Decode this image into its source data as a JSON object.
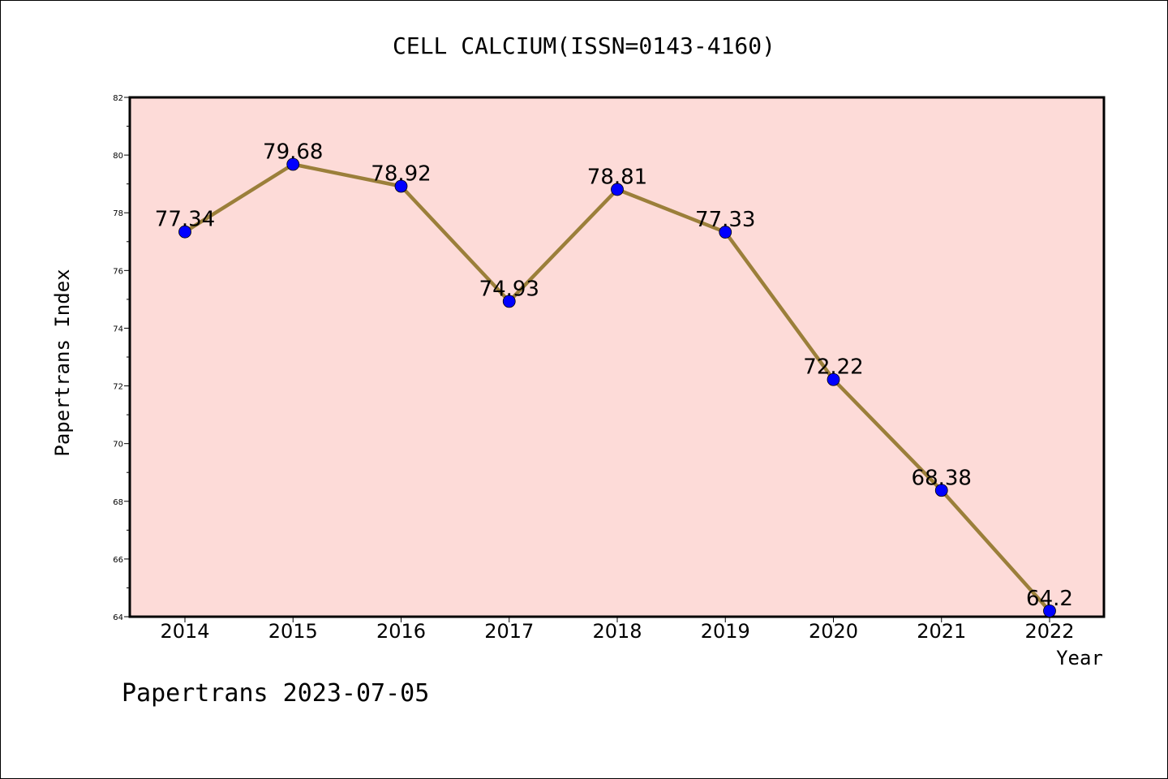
{
  "chart_data": {
    "type": "line",
    "title": "CELL CALCIUM(ISSN=0143-4160)",
    "xlabel": "Year",
    "ylabel": "Papertrans Index",
    "categories": [
      "2014",
      "2015",
      "2016",
      "2017",
      "2018",
      "2019",
      "2020",
      "2021",
      "2022"
    ],
    "series": [
      {
        "values": [
          77.34,
          79.68,
          78.92,
          74.93,
          78.81,
          77.33,
          72.22,
          68.38,
          64.2
        ]
      }
    ],
    "data_labels": [
      "77.34",
      "79.68",
      "78.92",
      "74.93",
      "78.81",
      "77.33",
      "72.22",
      "68.38",
      "64.2"
    ],
    "ylim": [
      64,
      82
    ],
    "yticks": [
      64,
      66,
      68,
      70,
      72,
      74,
      76,
      78,
      80,
      82
    ],
    "grid": false,
    "legend": "none",
    "colors": {
      "plot_background": "#fddbd8",
      "line": "#9b7f3a",
      "marker": "#0000ff"
    }
  },
  "footer": "Papertrans 2023-07-05"
}
